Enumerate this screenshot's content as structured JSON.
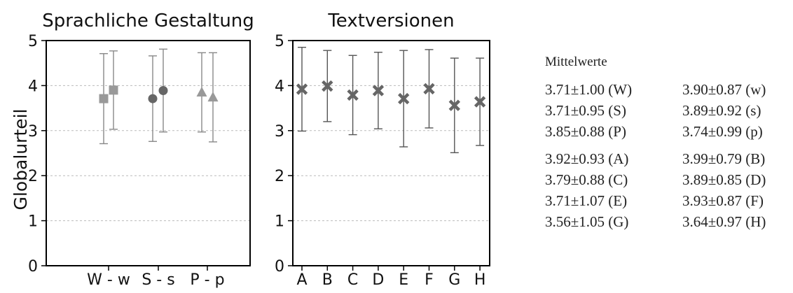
{
  "ylabel": "Globalurteil",
  "yticks": [
    "0",
    "1",
    "2",
    "3",
    "4",
    "5"
  ],
  "stats_title": "Mittelwerte",
  "stats_group1": [
    "3.71±1.00 (W)",
    "3.90±0.87 (w)",
    "3.71±0.95 (S)",
    "3.89±0.92 (s)",
    "3.85±0.88 (P)",
    "3.74±0.99 (p)"
  ],
  "stats_group2": [
    "3.92±0.93 (A)",
    "3.99±0.79 (B)",
    "3.79±0.88 (C)",
    "3.89±0.85 (D)",
    "3.71±1.07 (E)",
    "3.93±0.87 (F)",
    "3.56±1.05 (G)",
    "3.64±0.97 (H)"
  ],
  "colors": {
    "markers_left": "#999999",
    "markers_right": "#666666",
    "errorbar": "#888888",
    "grid": "#bbbbbb"
  },
  "chart_data": [
    {
      "type": "scatter",
      "title": "Sprachliche Gestaltung",
      "ylabel": "Globalurteil",
      "ylim": [
        0,
        5
      ],
      "grid": "horizontal dashed",
      "xtick_labels": [
        "W - w",
        "S - s",
        "P - p"
      ],
      "points": [
        {
          "label": "W",
          "mean": 3.71,
          "sd": 1.0,
          "marker": "square"
        },
        {
          "label": "w",
          "mean": 3.9,
          "sd": 0.87,
          "marker": "square"
        },
        {
          "label": "S",
          "mean": 3.71,
          "sd": 0.95,
          "marker": "circle"
        },
        {
          "label": "s",
          "mean": 3.89,
          "sd": 0.92,
          "marker": "circle"
        },
        {
          "label": "P",
          "mean": 3.85,
          "sd": 0.88,
          "marker": "triangle"
        },
        {
          "label": "p",
          "mean": 3.74,
          "sd": 0.99,
          "marker": "triangle"
        }
      ]
    },
    {
      "type": "scatter",
      "title": "Textversionen",
      "ylim": [
        0,
        5
      ],
      "grid": "horizontal dashed",
      "categories": [
        "A",
        "B",
        "C",
        "D",
        "E",
        "F",
        "G",
        "H"
      ],
      "points": [
        {
          "label": "A",
          "mean": 3.92,
          "sd": 0.93,
          "marker": "x"
        },
        {
          "label": "B",
          "mean": 3.99,
          "sd": 0.79,
          "marker": "x"
        },
        {
          "label": "C",
          "mean": 3.79,
          "sd": 0.88,
          "marker": "x"
        },
        {
          "label": "D",
          "mean": 3.89,
          "sd": 0.85,
          "marker": "x"
        },
        {
          "label": "E",
          "mean": 3.71,
          "sd": 1.07,
          "marker": "x"
        },
        {
          "label": "F",
          "mean": 3.93,
          "sd": 0.87,
          "marker": "x"
        },
        {
          "label": "G",
          "mean": 3.56,
          "sd": 1.05,
          "marker": "x"
        },
        {
          "label": "H",
          "mean": 3.64,
          "sd": 0.97,
          "marker": "x"
        }
      ]
    }
  ]
}
